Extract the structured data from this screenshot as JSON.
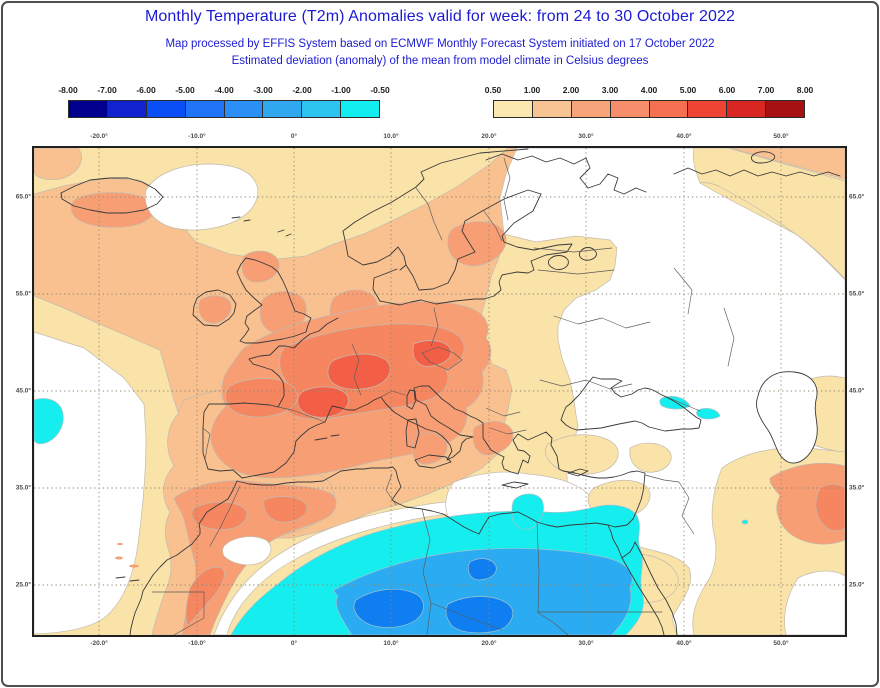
{
  "header": {
    "title": "Monthly Temperature (T2m) Anomalies valid for week: from 24 to 30 October 2022",
    "subtitle1": "Map processed by EFFIS System based on ECMWF Monthly Forecast System initiated on 17 October 2022",
    "subtitle2": "Estimated deviation (anomaly) of the mean from model climate in Celsius degrees",
    "title_color": "#1b1bd1"
  },
  "colorbars": {
    "negative": {
      "tick_labels": [
        "-8.00",
        "-7.00",
        "-6.00",
        "-5.00",
        "-4.00",
        "-3.00",
        "-2.00",
        "-1.00",
        "-0.50"
      ],
      "colors": [
        "#00008C",
        "#1023CD",
        "#0A4FF5",
        "#1F74F8",
        "#2B90F5",
        "#2FA8F0",
        "#2CC3EF",
        "#12EDF0"
      ]
    },
    "positive": {
      "tick_labels": [
        "0.50",
        "1.00",
        "2.00",
        "3.00",
        "4.00",
        "5.00",
        "6.00",
        "7.00",
        "8.00"
      ],
      "colors": [
        "#FBE7B0",
        "#F9C493",
        "#F8A47B",
        "#F68E6B",
        "#F47050",
        "#EF4333",
        "#D82723",
        "#A61214"
      ]
    }
  },
  "map": {
    "lon_ticks": [
      "-20.0°",
      "-10.0°",
      "0°",
      "10.0°",
      "20.0°",
      "30.0°",
      "40.0°",
      "50.0°"
    ],
    "lat_ticks": [
      "65.0°",
      "55.0°",
      "45.0°",
      "35.0°",
      "25.0°"
    ],
    "fills": {
      "tan": "#FAE3A9",
      "salmon": "#F9C190",
      "salmon_deep": "#F79E75",
      "orange": "#F58660",
      "red_core": "#F35F46",
      "white": "#FFFFFF",
      "cyan": "#16EDEE",
      "blue_mid": "#2BACF2",
      "blue_deep": "#0F7EF0"
    },
    "strokes": {
      "coast": "#3A3A3A",
      "border": "#5A5A5A",
      "grid": "#8F8672",
      "contour": "#C2BBAD",
      "contour_cool": "#9FC4CC"
    }
  }
}
